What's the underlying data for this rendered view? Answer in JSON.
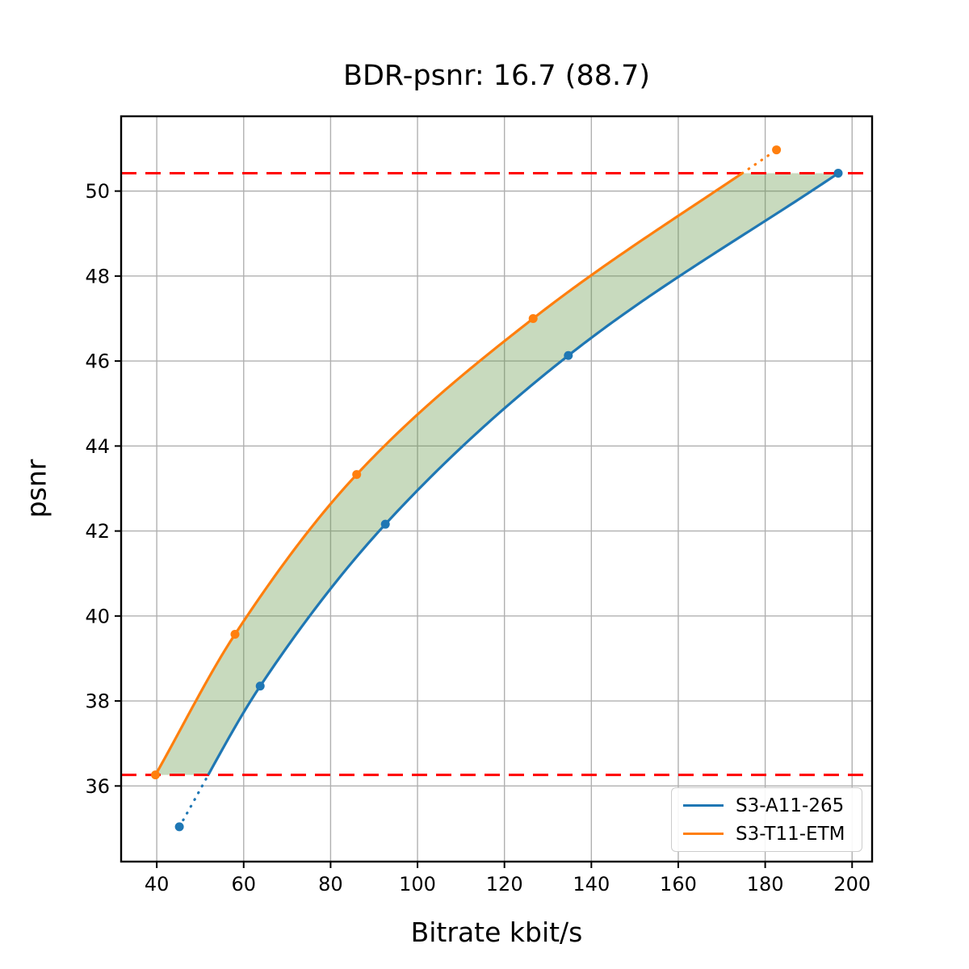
{
  "title": "BDR-psnr: 16.7 (88.7)",
  "legend": {
    "items": [
      {
        "label": "S3-A11-265",
        "color": "#1f77b4"
      },
      {
        "label": "S3-T11-ETM",
        "color": "#ff7f0e"
      }
    ]
  },
  "chart_data": {
    "type": "line",
    "title": "BDR-psnr: 16.7 (88.7)",
    "xlabel": "Bitrate kbit/s",
    "ylabel": "psnr",
    "xlim": [
      31.8,
      204.6
    ],
    "ylim": [
      34.22,
      51.76
    ],
    "xticks": [
      40,
      60,
      80,
      100,
      120,
      140,
      160,
      180,
      200
    ],
    "yticks": [
      36,
      38,
      40,
      42,
      44,
      46,
      48,
      50
    ],
    "grid": true,
    "grid_color": "#b0b0b0",
    "legend_position": "lower right",
    "series": [
      {
        "name": "S3-A11-265",
        "color": "#1f77b4",
        "x": [
          45.2,
          63.8,
          92.6,
          134.7,
          196.8
        ],
        "y": [
          35.04,
          38.35,
          42.16,
          46.13,
          50.42
        ]
      },
      {
        "name": "S3-T11-ETM",
        "color": "#ff7f0e",
        "x": [
          39.7,
          58.0,
          86.0,
          126.6,
          182.6
        ],
        "y": [
          36.26,
          39.57,
          43.33,
          47.0,
          50.97
        ]
      }
    ],
    "overlap_range_psnr": [
      36.26,
      50.42
    ],
    "ref_lines": [
      {
        "y": 50.42,
        "color": "#ff0000",
        "style": "dashed"
      },
      {
        "y": 36.26,
        "color": "#ff0000",
        "style": "dashed"
      }
    ],
    "band_fill": "rgba(96,150,70,0.35)",
    "interpolation": "pchip",
    "outside_overlap_linestyle": "dotted"
  }
}
